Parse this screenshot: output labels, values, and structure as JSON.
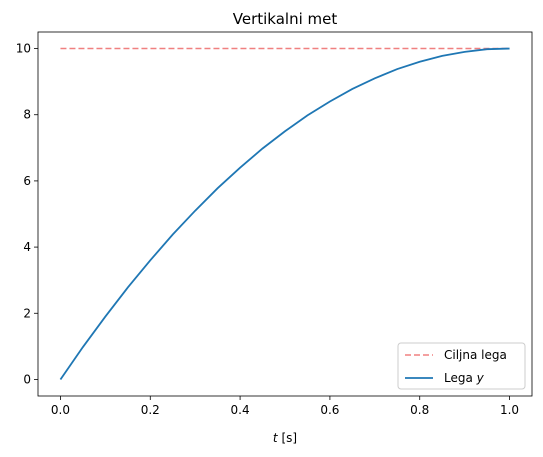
{
  "chart_data": {
    "type": "line",
    "title": "Vertikalni met",
    "xlabel_var": "t",
    "xlabel_unit": " [s]",
    "ylabel": "",
    "xlim": [
      -0.05,
      1.05
    ],
    "ylim": [
      -0.5,
      10.5
    ],
    "xticks": [
      0.0,
      0.2,
      0.4,
      0.6,
      0.8,
      1.0
    ],
    "xtick_labels": [
      "0.0",
      "0.2",
      "0.4",
      "0.6",
      "0.8",
      "1.0"
    ],
    "yticks": [
      0,
      2,
      4,
      6,
      8,
      10
    ],
    "ytick_labels": [
      "0",
      "2",
      "4",
      "6",
      "8",
      "10"
    ],
    "grid": false,
    "legend_position": "lower-right",
    "series": [
      {
        "name": "Ciljna lega",
        "style": "dashed",
        "color": "#f08080",
        "x": [
          0.0,
          1.0
        ],
        "y": [
          10,
          10
        ]
      },
      {
        "name": "Lega y",
        "name_text": "Lega ",
        "name_var": "y",
        "style": "solid",
        "color": "#1f77b4",
        "x": [
          0.0,
          0.05,
          0.1,
          0.15,
          0.2,
          0.25,
          0.3,
          0.35,
          0.4,
          0.45,
          0.5,
          0.55,
          0.6,
          0.65,
          0.7,
          0.75,
          0.8,
          0.85,
          0.9,
          0.95,
          1.0
        ],
        "y": [
          0.0,
          0.98,
          1.9,
          2.78,
          3.6,
          4.38,
          5.1,
          5.78,
          6.4,
          6.98,
          7.5,
          7.98,
          8.4,
          8.78,
          9.1,
          9.38,
          9.6,
          9.78,
          9.9,
          9.98,
          10.0
        ]
      }
    ]
  }
}
